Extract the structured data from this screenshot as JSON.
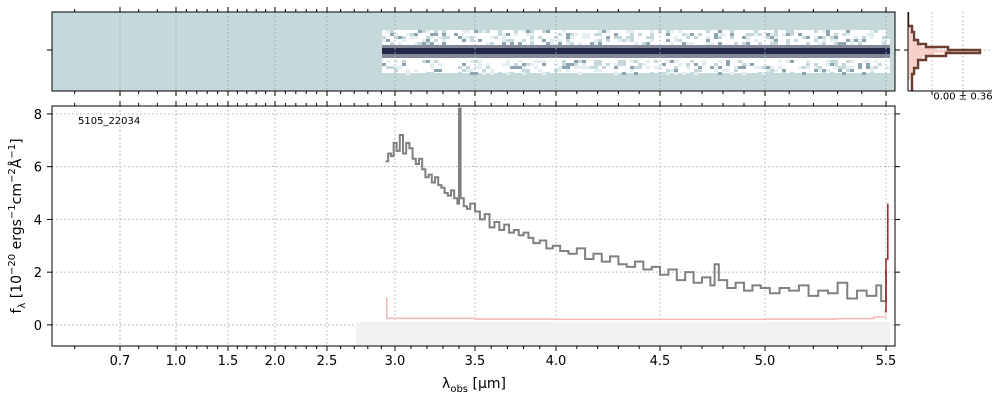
{
  "chart_data": [
    {
      "panel": "2d-spectrum",
      "type": "heatmap",
      "colors": {
        "background": "#c5d9da",
        "trace": "#23284a",
        "frame": "#000000"
      }
    },
    {
      "panel": "cross-dispersion-profile",
      "type": "line",
      "annotation": "0.00 ± 0.36",
      "colors": {
        "profile": "#6d3d30",
        "model_fill": "#f6c6bd"
      }
    },
    {
      "panel": "1d-spectrum",
      "type": "line",
      "object_id": "5105_22034",
      "xlabel_text": "λ",
      "xlabel_sub": "obs",
      "xlabel_unit": " [μm]",
      "ylabel_main": "f",
      "ylabel_sub": "λ",
      "ylabel_rest": " [10",
      "ylabel_exp1": "−20",
      "ylabel_u1": " ergs",
      "ylabel_exp2": "−1",
      "ylabel_u2": "cm",
      "ylabel_exp3": "−2",
      "ylabel_u3": "Å",
      "ylabel_exp4": "−1",
      "ylabel_end": "]",
      "x_ticks": [
        {
          "value": 0.7,
          "label": "0.7"
        },
        {
          "value": 1.0,
          "label": "1.0"
        },
        {
          "value": 1.5,
          "label": "1.5"
        },
        {
          "value": 2.0,
          "label": "2.0"
        },
        {
          "value": 2.5,
          "label": "2.5"
        },
        {
          "value": 3.0,
          "label": "3.0"
        },
        {
          "value": 3.5,
          "label": "3.5"
        },
        {
          "value": 4.0,
          "label": "4.0"
        },
        {
          "value": 4.5,
          "label": "4.5"
        },
        {
          "value": 5.0,
          "label": "5.0"
        },
        {
          "value": 5.5,
          "label": "5.5"
        }
      ],
      "y_ticks": [
        0,
        2,
        4,
        6,
        8
      ],
      "ylim": [
        -0.8,
        8.3
      ],
      "grid": true,
      "series": [
        {
          "color": "#808080",
          "x": [
            2.93,
            2.95,
            2.97,
            2.99,
            3.01,
            3.03,
            3.05,
            3.07,
            3.09,
            3.11,
            3.13,
            3.15,
            3.17,
            3.19,
            3.21,
            3.23,
            3.25,
            3.27,
            3.29,
            3.31,
            3.33,
            3.35,
            3.37,
            3.39,
            3.4,
            3.41,
            3.43,
            3.45,
            3.47,
            3.5,
            3.53,
            3.56,
            3.59,
            3.62,
            3.65,
            3.68,
            3.71,
            3.74,
            3.77,
            3.8,
            3.83,
            3.86,
            3.9,
            3.94,
            3.98,
            4.02,
            4.06,
            4.1,
            4.14,
            4.18,
            4.22,
            4.26,
            4.3,
            4.34,
            4.38,
            4.42,
            4.46,
            4.5,
            4.54,
            4.58,
            4.62,
            4.66,
            4.7,
            4.74,
            4.76,
            4.78,
            4.82,
            4.86,
            4.9,
            4.94,
            4.98,
            5.02,
            5.06,
            5.1,
            5.14,
            5.18,
            5.22,
            5.26,
            5.3,
            5.34,
            5.38,
            5.42,
            5.46,
            5.48,
            5.5
          ],
          "y": [
            6.2,
            6.5,
            6.4,
            6.9,
            6.6,
            7.2,
            6.5,
            6.9,
            6.7,
            6.3,
            6.1,
            6.3,
            5.9,
            5.6,
            5.7,
            5.4,
            5.6,
            5.3,
            5.2,
            5.0,
            4.9,
            5.1,
            4.8,
            4.6,
            8.2,
            4.8,
            4.5,
            4.4,
            4.6,
            4.3,
            4.0,
            4.2,
            3.7,
            3.9,
            3.6,
            3.8,
            3.5,
            3.6,
            3.4,
            3.5,
            3.3,
            3.1,
            3.2,
            2.9,
            3.0,
            2.8,
            2.7,
            2.9,
            2.5,
            2.7,
            2.4,
            2.6,
            2.3,
            2.2,
            2.4,
            2.1,
            2.2,
            1.9,
            2.1,
            1.7,
            2.0,
            1.6,
            1.8,
            1.5,
            2.3,
            1.7,
            1.4,
            1.6,
            1.3,
            1.5,
            1.4,
            1.2,
            1.4,
            1.3,
            1.5,
            1.1,
            1.3,
            1.2,
            1.6,
            1.0,
            1.3,
            1.1,
            1.5,
            0.9,
            2.1
          ]
        },
        {
          "color": "#f4b8b8",
          "x": [
            2.93,
            2.94,
            3.0,
            3.5,
            4.0,
            4.5,
            5.0,
            5.3,
            5.45,
            5.5
          ],
          "y": [
            1.0,
            0.25,
            0.25,
            0.22,
            0.21,
            0.21,
            0.22,
            0.24,
            0.3,
            0.3
          ]
        },
        {
          "color": "#a03030",
          "x": [
            5.495,
            5.5,
            5.51
          ],
          "y": [
            0.5,
            2.5,
            4.6
          ]
        }
      ]
    }
  ]
}
